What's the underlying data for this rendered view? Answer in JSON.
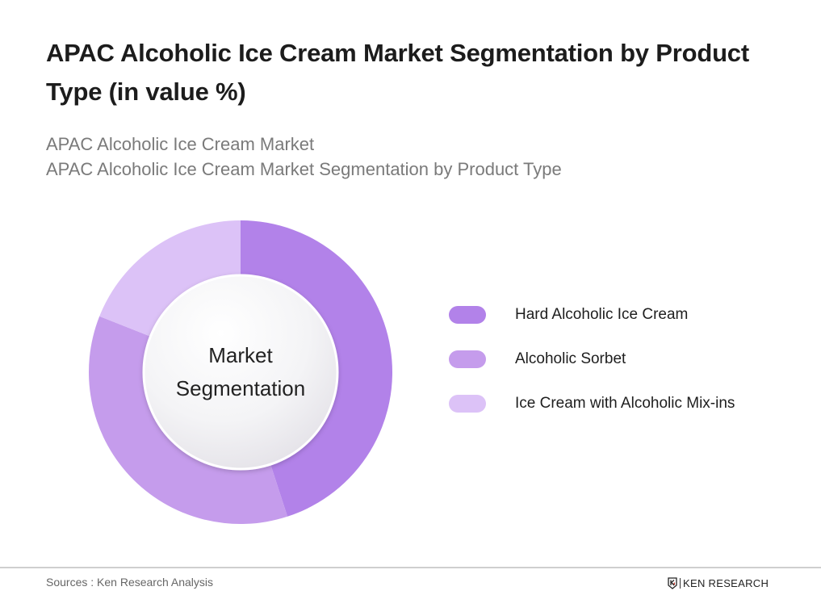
{
  "header": {
    "title": "APAC Alcoholic Ice Cream Market Segmentation by Product Type (in value %)",
    "subtitle_line1": "APAC Alcoholic Ice Cream Market",
    "subtitle_line2": "APAC Alcoholic Ice Cream Market Segmentation by Product Type"
  },
  "donut": {
    "center_label_line1": "Market",
    "center_label_line2": "Segmentation"
  },
  "legend": {
    "items": [
      {
        "label": "Hard Alcoholic Ice Cream",
        "color": "#b282e9"
      },
      {
        "label": "Alcoholic Sorbet",
        "color": "#c59cec"
      },
      {
        "label": "Ice Cream with Alcoholic Mix-ins",
        "color": "#dcc2f7"
      }
    ]
  },
  "footer": {
    "source": "Sources : Ken Research Analysis",
    "brand": "KEN RESEARCH"
  },
  "chart_data": {
    "type": "pie",
    "subtype": "donut",
    "title": "APAC Alcoholic Ice Cream Market Segmentation by Product Type (in value %)",
    "center_text": "Market Segmentation",
    "categories": [
      "Hard Alcoholic Ice Cream",
      "Alcoholic Sorbet",
      "Ice Cream with Alcoholic Mix-ins"
    ],
    "values": [
      45,
      36,
      19
    ],
    "colors": [
      "#b282e9",
      "#c59cec",
      "#dcc2f7"
    ],
    "start_angle": "12 o'clock, clockwise",
    "data_labels": false,
    "legend_position": "right"
  }
}
